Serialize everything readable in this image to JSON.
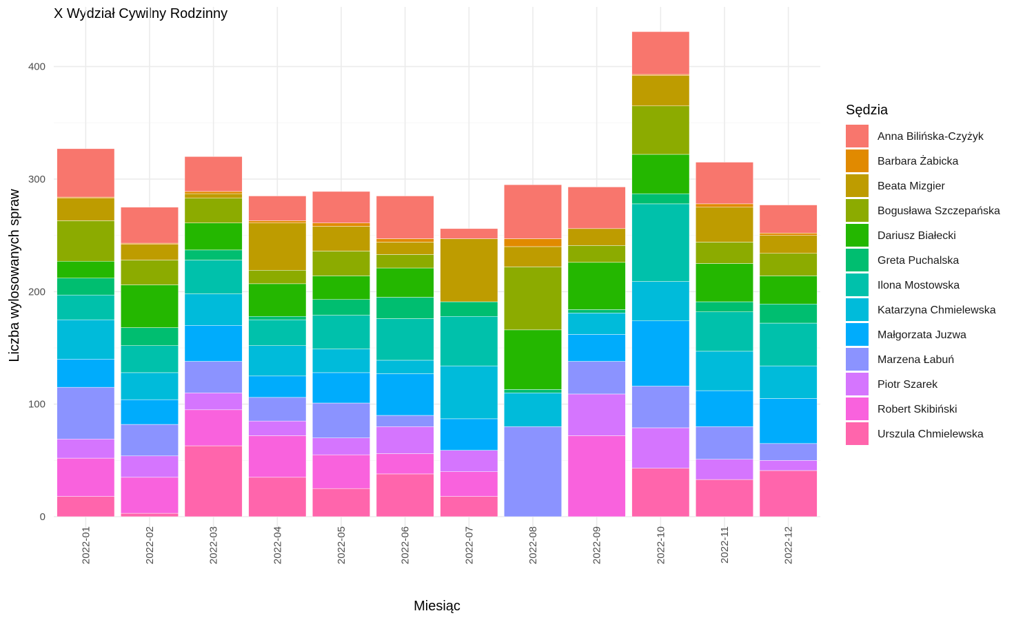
{
  "chart_data": {
    "type": "bar",
    "stacked": true,
    "title": "X Wydział Cywilny Rodzinny",
    "xlabel": "Miesiąc",
    "ylabel": "Liczba wylosowanych spraw",
    "ylim": [
      0,
      440
    ],
    "y_ticks": [
      0,
      100,
      200,
      300,
      400
    ],
    "grid": true,
    "legend_title": "Sędzia",
    "legend_position": "right",
    "categories": [
      "2022-01",
      "2022-02",
      "2022-03",
      "2022-04",
      "2022-05",
      "2022-06",
      "2022-07",
      "2022-08",
      "2022-09",
      "2022-10",
      "2022-11",
      "2022-12"
    ],
    "series": [
      {
        "name": "Anna Bilińska-Czyżyk",
        "color": "#F8766D",
        "values": [
          43,
          32,
          31,
          22,
          28,
          38,
          9,
          48,
          37,
          38,
          37,
          25
        ]
      },
      {
        "name": "Barbara Żabicka",
        "color": "#E18A00",
        "values": [
          1,
          1,
          2,
          2,
          3,
          3,
          0,
          7,
          0,
          1,
          3,
          2
        ]
      },
      {
        "name": "Beata Mizgier",
        "color": "#BE9C00",
        "values": [
          20,
          14,
          4,
          42,
          22,
          11,
          56,
          18,
          15,
          27,
          31,
          16
        ]
      },
      {
        "name": "Bogusława Szczepańska",
        "color": "#8CAB00",
        "values": [
          36,
          22,
          22,
          12,
          22,
          12,
          0,
          56,
          15,
          43,
          19,
          20
        ]
      },
      {
        "name": "Dariusz Białecki",
        "color": "#24B700",
        "values": [
          15,
          38,
          24,
          29,
          21,
          26,
          0,
          53,
          42,
          35,
          34,
          25
        ]
      },
      {
        "name": "Greta Puchalska",
        "color": "#00BE70",
        "values": [
          15,
          16,
          9,
          3,
          14,
          19,
          13,
          3,
          3,
          9,
          9,
          17
        ]
      },
      {
        "name": "Ilona Mostowska",
        "color": "#00C1AB",
        "values": [
          22,
          24,
          30,
          23,
          30,
          37,
          44,
          0,
          0,
          69,
          35,
          38
        ]
      },
      {
        "name": "Katarzyna Chmielewska",
        "color": "#00BBDA",
        "values": [
          35,
          24,
          28,
          27,
          21,
          12,
          47,
          30,
          19,
          35,
          35,
          29
        ]
      },
      {
        "name": "Małgorzata Juzwa",
        "color": "#00ACFC",
        "values": [
          25,
          22,
          32,
          19,
          27,
          37,
          28,
          0,
          24,
          58,
          32,
          40
        ]
      },
      {
        "name": "Marzena Łabuń",
        "color": "#8B93FF",
        "values": [
          46,
          28,
          28,
          21,
          31,
          10,
          0,
          80,
          29,
          37,
          29,
          15
        ]
      },
      {
        "name": "Piotr Szarek",
        "color": "#D575FE",
        "values": [
          17,
          19,
          15,
          13,
          15,
          24,
          19,
          0,
          37,
          36,
          18,
          9
        ]
      },
      {
        "name": "Robert Skibiński",
        "color": "#F962DD",
        "values": [
          34,
          32,
          32,
          37,
          30,
          18,
          22,
          0,
          72,
          0,
          0,
          0
        ]
      },
      {
        "name": "Urszula Chmielewska",
        "color": "#FF65AC",
        "values": [
          18,
          3,
          63,
          35,
          25,
          38,
          18,
          0,
          0,
          43,
          33,
          41
        ]
      }
    ]
  }
}
